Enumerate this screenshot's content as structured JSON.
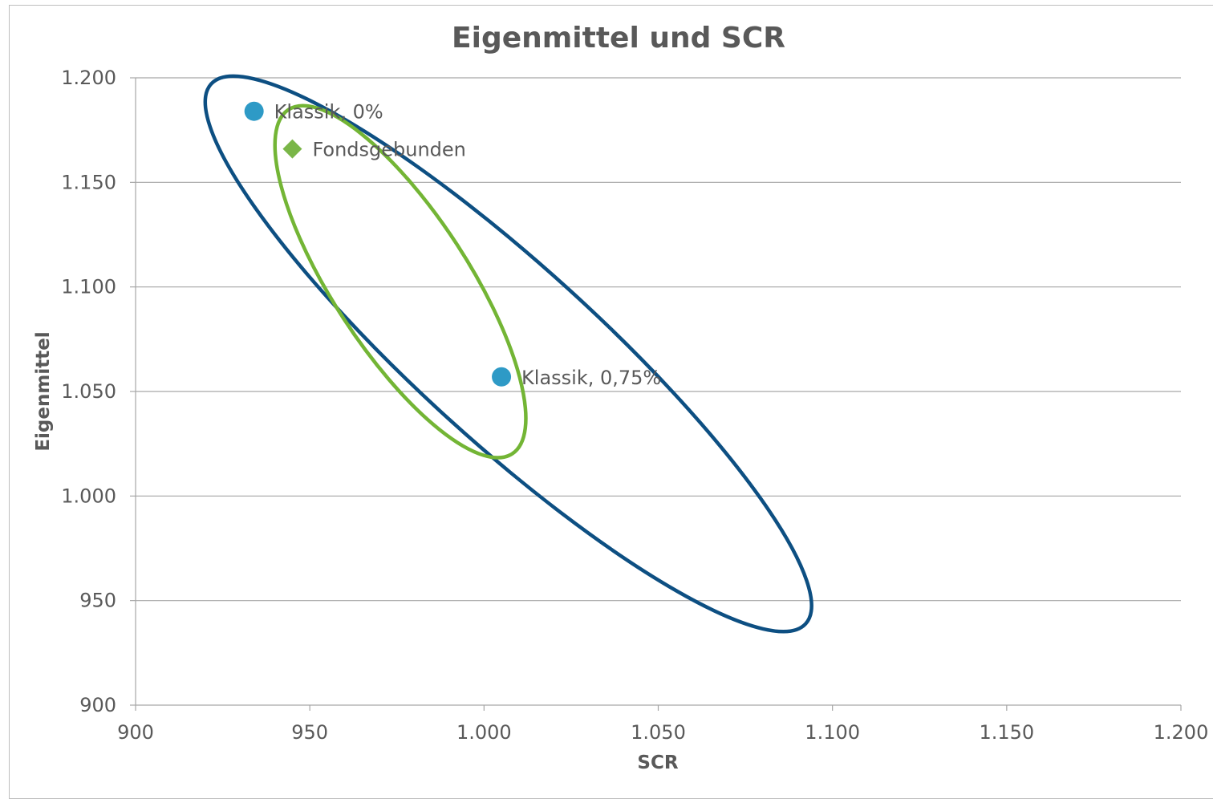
{
  "chart_data": {
    "type": "scatter",
    "title": "Eigenmittel und SCR",
    "xlabel": "SCR",
    "ylabel": "Eigenmittel",
    "xlim": [
      900,
      1200
    ],
    "ylim": [
      900,
      1200
    ],
    "x_ticks": [
      900,
      950,
      1000,
      1050,
      1100,
      1150,
      1200
    ],
    "x_tick_labels": [
      "900",
      "950",
      "1.000",
      "1.050",
      "1.100",
      "1.150",
      "1.200"
    ],
    "y_ticks": [
      900,
      950,
      1000,
      1050,
      1100,
      1150,
      1200
    ],
    "y_tick_labels": [
      "900",
      "950",
      "1.000",
      "1.050",
      "1.100",
      "1.150",
      "1.200"
    ],
    "grid": "horizontal",
    "legend": "none",
    "points": [
      {
        "label": "Klassik, 0%",
        "x": 934,
        "y": 1184,
        "marker": "circle",
        "color": "#2e9ac6"
      },
      {
        "label": "Fondsgebunden",
        "x": 945,
        "y": 1166,
        "marker": "diamond",
        "color": "#7ab648"
      },
      {
        "label": "Klassik, 0,75%",
        "x": 1005,
        "y": 1057,
        "marker": "circle",
        "color": "#2e9ac6"
      }
    ],
    "annotations": [
      {
        "shape": "ellipse",
        "color": "#0d4f82",
        "x_range": [
          920,
          1094
        ],
        "y_range": [
          931,
          1205
        ]
      },
      {
        "shape": "ellipse",
        "color": "#73b535",
        "x_range": [
          940,
          1012
        ],
        "y_range": [
          1023,
          1182
        ]
      }
    ]
  }
}
